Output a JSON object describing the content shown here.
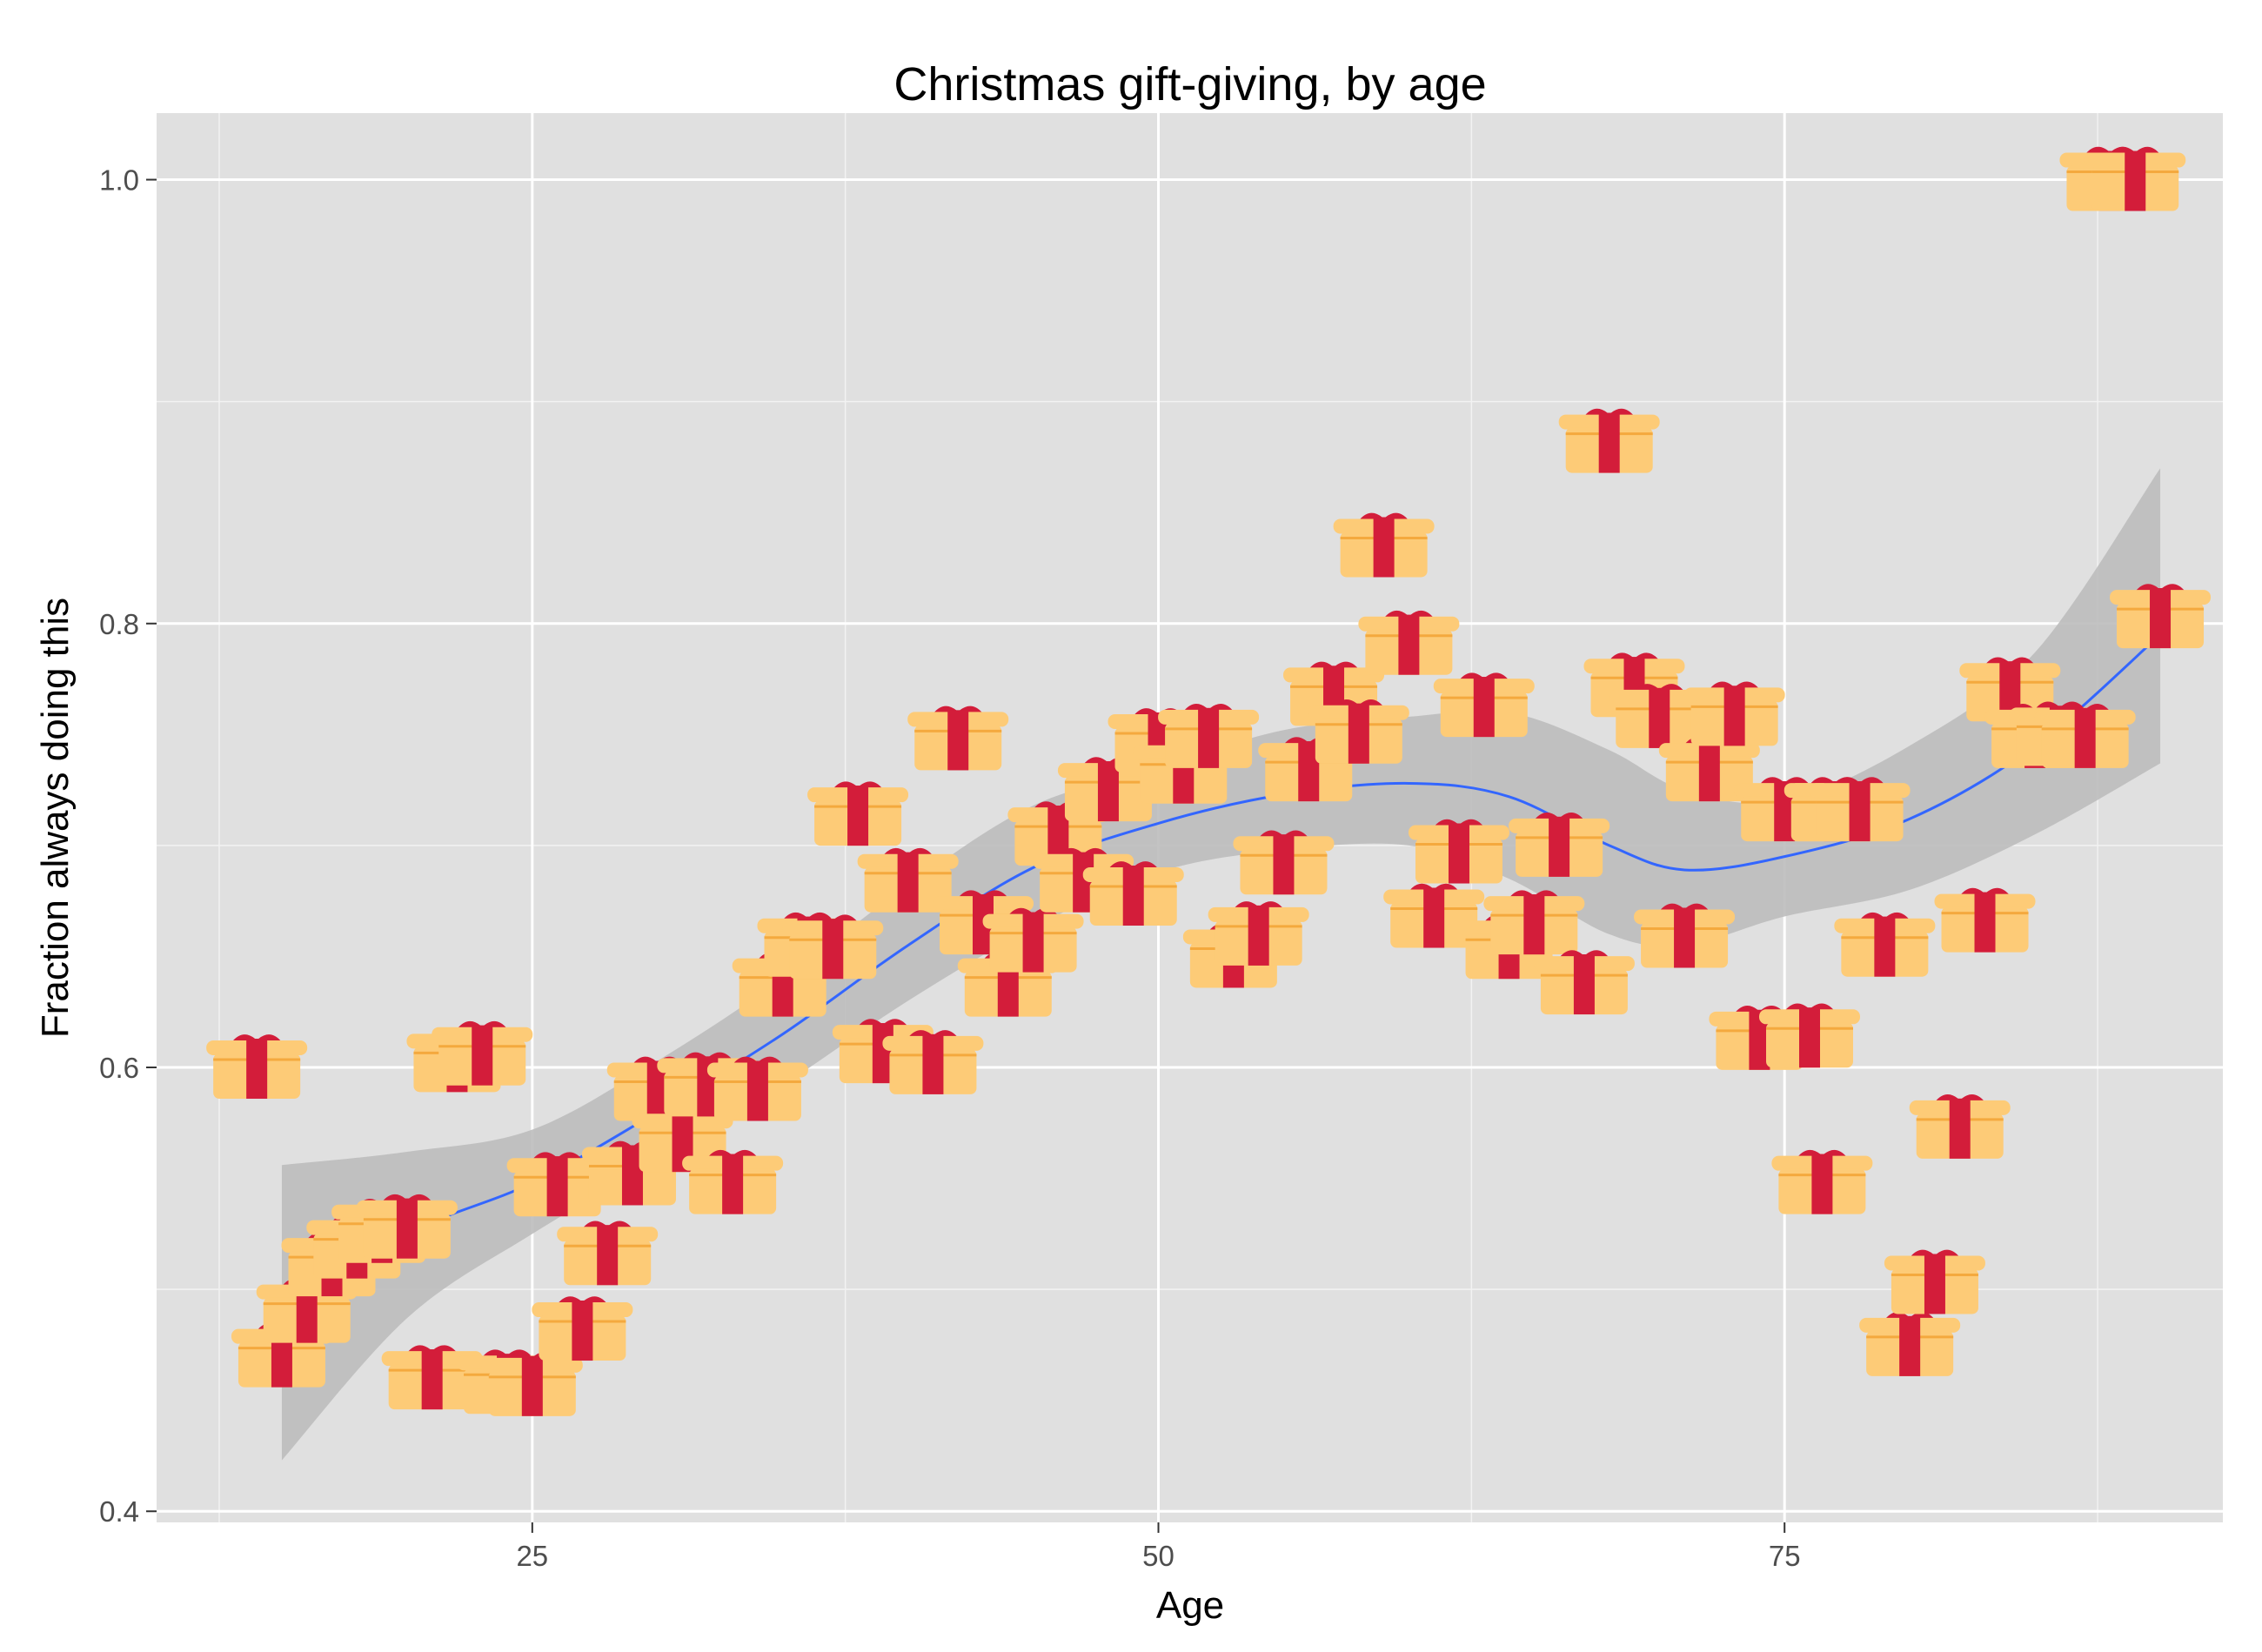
{
  "chart_data": {
    "type": "scatter",
    "title": "Christmas gift-giving, by age",
    "xlabel": "Age",
    "ylabel": "Fraction always doing this",
    "xlim": [
      10,
      92.5
    ],
    "ylim": [
      0.395,
      1.03
    ],
    "x_ticks": [
      25,
      50,
      75
    ],
    "x_tick_labels": [
      "25",
      "50",
      "75"
    ],
    "y_ticks": [
      0.4,
      0.6,
      0.8,
      1.0
    ],
    "y_tick_labels": [
      "0.4",
      "0.6",
      "0.8",
      "1.0"
    ],
    "grid": true,
    "marker": "gift-icon",
    "colors": {
      "panel": "#e0e0e0",
      "grid": "#ffffff",
      "smooth_line": "#3366ff",
      "ribbon": "#bdbdbd",
      "gift_box": "#fdcb77",
      "gift_stripe": "#f4a93e",
      "gift_ribbon": "#d31d3a"
    },
    "points": [
      {
        "x": 14,
        "y": 0.6
      },
      {
        "x": 15,
        "y": 0.47
      },
      {
        "x": 16,
        "y": 0.49
      },
      {
        "x": 17,
        "y": 0.511
      },
      {
        "x": 18,
        "y": 0.519
      },
      {
        "x": 19,
        "y": 0.526
      },
      {
        "x": 20,
        "y": 0.528
      },
      {
        "x": 21,
        "y": 0.46
      },
      {
        "x": 22,
        "y": 0.603
      },
      {
        "x": 23,
        "y": 0.606
      },
      {
        "x": 24,
        "y": 0.458
      },
      {
        "x": 25,
        "y": 0.457
      },
      {
        "x": 26,
        "y": 0.547
      },
      {
        "x": 27,
        "y": 0.482
      },
      {
        "x": 28,
        "y": 0.516
      },
      {
        "x": 29,
        "y": 0.552
      },
      {
        "x": 30,
        "y": 0.59
      },
      {
        "x": 31,
        "y": 0.567
      },
      {
        "x": 32,
        "y": 0.592
      },
      {
        "x": 33,
        "y": 0.548
      },
      {
        "x": 34,
        "y": 0.59
      },
      {
        "x": 35,
        "y": 0.637
      },
      {
        "x": 36,
        "y": 0.655
      },
      {
        "x": 37,
        "y": 0.654
      },
      {
        "x": 38,
        "y": 0.714
      },
      {
        "x": 39,
        "y": 0.607
      },
      {
        "x": 40,
        "y": 0.684
      },
      {
        "x": 41,
        "y": 0.602
      },
      {
        "x": 42,
        "y": 0.748
      },
      {
        "x": 43,
        "y": 0.665
      },
      {
        "x": 44,
        "y": 0.637
      },
      {
        "x": 45,
        "y": 0.657
      },
      {
        "x": 46,
        "y": 0.705
      },
      {
        "x": 47,
        "y": 0.684
      },
      {
        "x": 48,
        "y": 0.725
      },
      {
        "x": 49,
        "y": 0.678
      },
      {
        "x": 50,
        "y": 0.747
      },
      {
        "x": 51,
        "y": 0.733
      },
      {
        "x": 52,
        "y": 0.749
      },
      {
        "x": 53,
        "y": 0.65
      },
      {
        "x": 54,
        "y": 0.66
      },
      {
        "x": 55,
        "y": 0.692
      },
      {
        "x": 56,
        "y": 0.734
      },
      {
        "x": 57,
        "y": 0.768
      },
      {
        "x": 58,
        "y": 0.751
      },
      {
        "x": 59,
        "y": 0.835
      },
      {
        "x": 60,
        "y": 0.791
      },
      {
        "x": 61,
        "y": 0.668
      },
      {
        "x": 62,
        "y": 0.697
      },
      {
        "x": 63,
        "y": 0.763
      },
      {
        "x": 64,
        "y": 0.654
      },
      {
        "x": 65,
        "y": 0.665
      },
      {
        "x": 66,
        "y": 0.7
      },
      {
        "x": 67,
        "y": 0.638
      },
      {
        "x": 68,
        "y": 0.882
      },
      {
        "x": 69,
        "y": 0.772
      },
      {
        "x": 70,
        "y": 0.758
      },
      {
        "x": 71,
        "y": 0.659
      },
      {
        "x": 72,
        "y": 0.734
      },
      {
        "x": 73,
        "y": 0.759
      },
      {
        "x": 74,
        "y": 0.613
      },
      {
        "x": 75,
        "y": 0.716
      },
      {
        "x": 76,
        "y": 0.614
      },
      {
        "x": 76.5,
        "y": 0.548
      },
      {
        "x": 77,
        "y": 0.716
      },
      {
        "x": 78,
        "y": 0.716
      },
      {
        "x": 79,
        "y": 0.655
      },
      {
        "x": 80,
        "y": 0.475
      },
      {
        "x": 81,
        "y": 0.503
      },
      {
        "x": 82,
        "y": 0.573
      },
      {
        "x": 83,
        "y": 0.666
      },
      {
        "x": 84,
        "y": 0.77
      },
      {
        "x": 85,
        "y": 0.749
      },
      {
        "x": 86,
        "y": 0.75
      },
      {
        "x": 87,
        "y": 0.749
      },
      {
        "x": 88,
        "y": 1.0
      },
      {
        "x": 89,
        "y": 1.0
      },
      {
        "x": 90,
        "y": 0.803
      }
    ],
    "smooth": {
      "x": [
        15,
        20,
        25,
        30,
        35,
        40,
        45,
        50,
        55,
        60,
        64,
        68,
        71,
        75,
        80,
        85,
        90
      ],
      "y": [
        0.488,
        0.525,
        0.548,
        0.58,
        0.615,
        0.655,
        0.69,
        0.71,
        0.723,
        0.728,
        0.722,
        0.7,
        0.689,
        0.695,
        0.712,
        0.745,
        0.795
      ],
      "lower": [
        0.423,
        0.487,
        0.525,
        0.558,
        0.592,
        0.63,
        0.663,
        0.688,
        0.698,
        0.7,
        0.685,
        0.66,
        0.655,
        0.668,
        0.68,
        0.705,
        0.737
      ],
      "upper": [
        0.556,
        0.562,
        0.572,
        0.603,
        0.64,
        0.682,
        0.718,
        0.735,
        0.752,
        0.758,
        0.76,
        0.743,
        0.725,
        0.72,
        0.745,
        0.787,
        0.87
      ]
    }
  }
}
